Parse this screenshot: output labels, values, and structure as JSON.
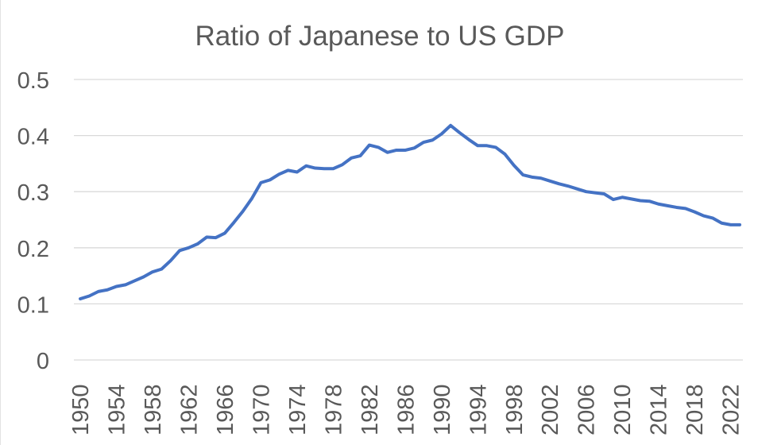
{
  "chart_data": {
    "type": "line",
    "title": "Ratio of Japanese to US GDP",
    "xlabel": "",
    "ylabel": "",
    "ylim": [
      0,
      0.5
    ],
    "yticks": [
      "0",
      "0.1",
      "0.2",
      "0.3",
      "0.4",
      "0.5"
    ],
    "ytick_values": [
      0,
      0.1,
      0.2,
      0.3,
      0.4,
      0.5
    ],
    "x": [
      1950,
      1951,
      1952,
      1953,
      1954,
      1955,
      1956,
      1957,
      1958,
      1959,
      1960,
      1961,
      1962,
      1963,
      1964,
      1965,
      1966,
      1967,
      1968,
      1969,
      1970,
      1971,
      1972,
      1973,
      1974,
      1975,
      1976,
      1977,
      1978,
      1979,
      1980,
      1981,
      1982,
      1983,
      1984,
      1985,
      1986,
      1987,
      1988,
      1989,
      1990,
      1991,
      1992,
      1993,
      1994,
      1995,
      1996,
      1997,
      1998,
      1999,
      2000,
      2001,
      2002,
      2003,
      2004,
      2005,
      2006,
      2007,
      2008,
      2009,
      2010,
      2011,
      2012,
      2013,
      2014,
      2015,
      2016,
      2017,
      2018,
      2019,
      2020,
      2021,
      2022,
      2023
    ],
    "xtick_labels": [
      "1950",
      "1954",
      "1958",
      "1962",
      "1966",
      "1970",
      "1974",
      "1978",
      "1982",
      "1986",
      "1990",
      "1994",
      "1998",
      "2002",
      "2006",
      "2010",
      "2014",
      "2018",
      "2022"
    ],
    "grid": true,
    "legend": "none",
    "series": [
      {
        "name": "Ratio of Japanese to US GDP",
        "color": "#4472c4",
        "values": [
          0.109,
          0.114,
          0.122,
          0.125,
          0.131,
          0.134,
          0.141,
          0.148,
          0.157,
          0.162,
          0.177,
          0.195,
          0.2,
          0.207,
          0.219,
          0.218,
          0.226,
          0.245,
          0.265,
          0.288,
          0.316,
          0.321,
          0.331,
          0.338,
          0.335,
          0.346,
          0.342,
          0.341,
          0.341,
          0.348,
          0.36,
          0.364,
          0.383,
          0.379,
          0.37,
          0.374,
          0.374,
          0.378,
          0.388,
          0.392,
          0.403,
          0.418,
          0.405,
          0.393,
          0.382,
          0.382,
          0.379,
          0.367,
          0.347,
          0.33,
          0.326,
          0.324,
          0.319,
          0.314,
          0.31,
          0.305,
          0.3,
          0.298,
          0.296,
          0.286,
          0.29,
          0.287,
          0.284,
          0.283,
          0.278,
          0.275,
          0.272,
          0.27,
          0.264,
          0.257,
          0.253,
          0.244,
          0.241,
          0.241
        ]
      }
    ]
  }
}
